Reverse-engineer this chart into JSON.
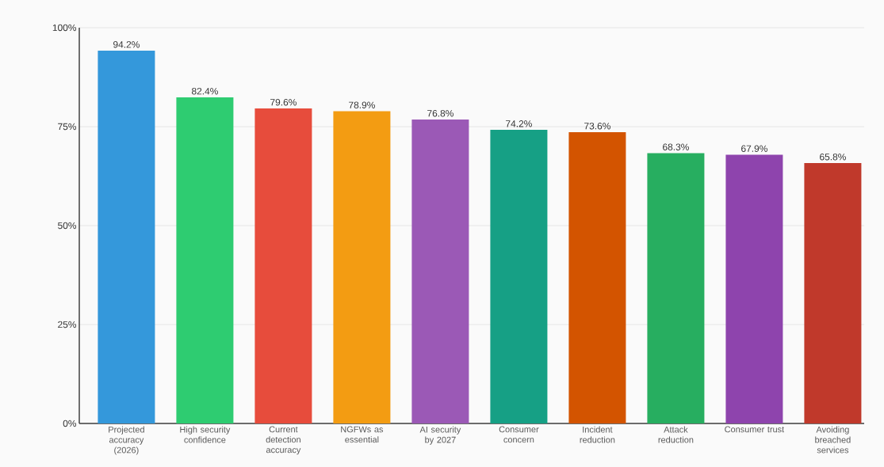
{
  "chart_data": {
    "type": "bar",
    "categories": [
      "Projected accuracy (2026)",
      "High security confidence",
      "Current detection accuracy",
      "NGFWs as essential",
      "AI security by 2027",
      "Consumer concern",
      "Incident reduction",
      "Attack reduction",
      "Consumer trust",
      "Avoiding breached services"
    ],
    "values": [
      94.2,
      82.4,
      79.6,
      78.9,
      76.8,
      74.2,
      73.6,
      68.3,
      67.9,
      65.8
    ],
    "value_labels": [
      "94.2%",
      "82.4%",
      "79.6%",
      "78.9%",
      "76.8%",
      "74.2%",
      "73.6%",
      "68.3%",
      "67.9%",
      "65.8%"
    ],
    "colors": [
      "#3498db",
      "#2ecc71",
      "#e74c3c",
      "#f39c12",
      "#9b59b6",
      "#16a085",
      "#d35400",
      "#27ae60",
      "#8e44ad",
      "#c0392b"
    ],
    "ylim": [
      0,
      100
    ],
    "yticks": [
      {
        "value": 0,
        "label": "0%"
      },
      {
        "value": 25,
        "label": "25%"
      },
      {
        "value": 50,
        "label": "50%"
      },
      {
        "value": 75,
        "label": "75%"
      },
      {
        "value": 100,
        "label": "100%"
      }
    ],
    "grid": "y"
  }
}
